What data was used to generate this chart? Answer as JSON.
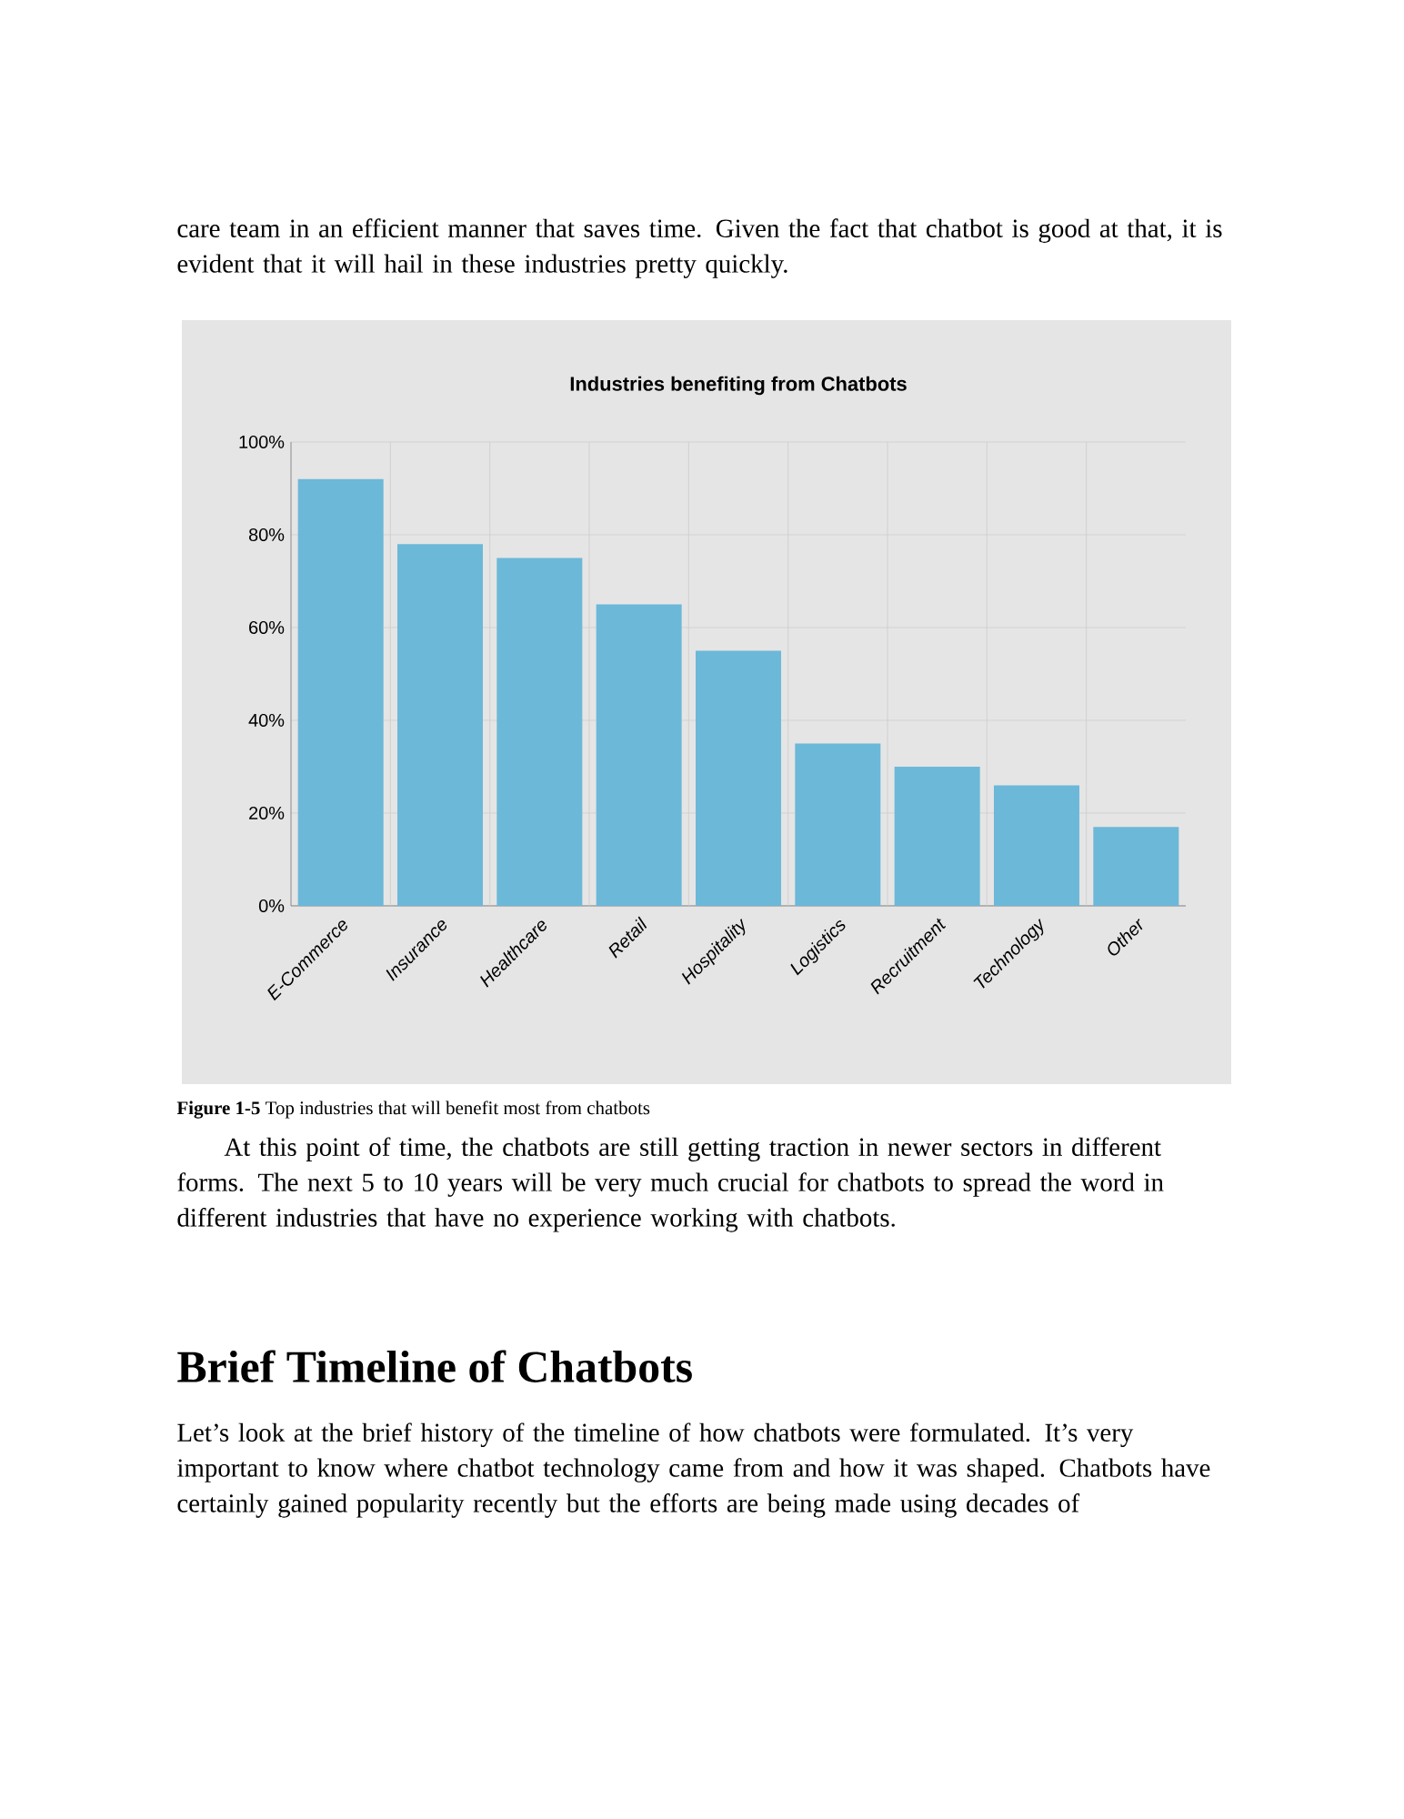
{
  "chart_data": {
    "type": "bar",
    "title": "Industries benefiting from Chatbots",
    "categories": [
      "E-Commerce",
      "Insurance",
      "Healthcare",
      "Retail",
      "Hospitality",
      "Logistics",
      "Recruitment",
      "Technology",
      "Other"
    ],
    "values": [
      92,
      78,
      75,
      65,
      55,
      35,
      30,
      26,
      17
    ],
    "color": "#6cb8d8",
    "ylim": [
      0,
      100
    ],
    "yticks": [
      {
        "value": 0,
        "label": "0%"
      },
      {
        "value": 20,
        "label": "20%"
      },
      {
        "value": 40,
        "label": "40%"
      },
      {
        "value": 60,
        "label": "60%"
      },
      {
        "value": 80,
        "label": "80%"
      },
      {
        "value": 100,
        "label": "100%"
      }
    ],
    "grid": true,
    "annotations": [
      "care team in an efficient manner that saves time. Given the fact that chatbot is good at that, it is evident that it will hail in these industries pretty quickly.",
      "**Figure 1-5**  Top industries that will benefit most from chatbots",
      "At this point of time, the chatbots are still getting traction in newer sectors in different forms. The next 5 to 10 years will be very much crucial for chatbots to spread the word in different industries that have no experience working with chatbots.",
      "Brief Timeline of Chatbots",
      "Let’s look at the brief history of the timeline of how chatbots were formulated. It’s very important to know where chatbot technology came from and how it was shaped. Chatbots have certainly gained popularity recently but the efforts are being made using decades of"
    ]
  }
}
